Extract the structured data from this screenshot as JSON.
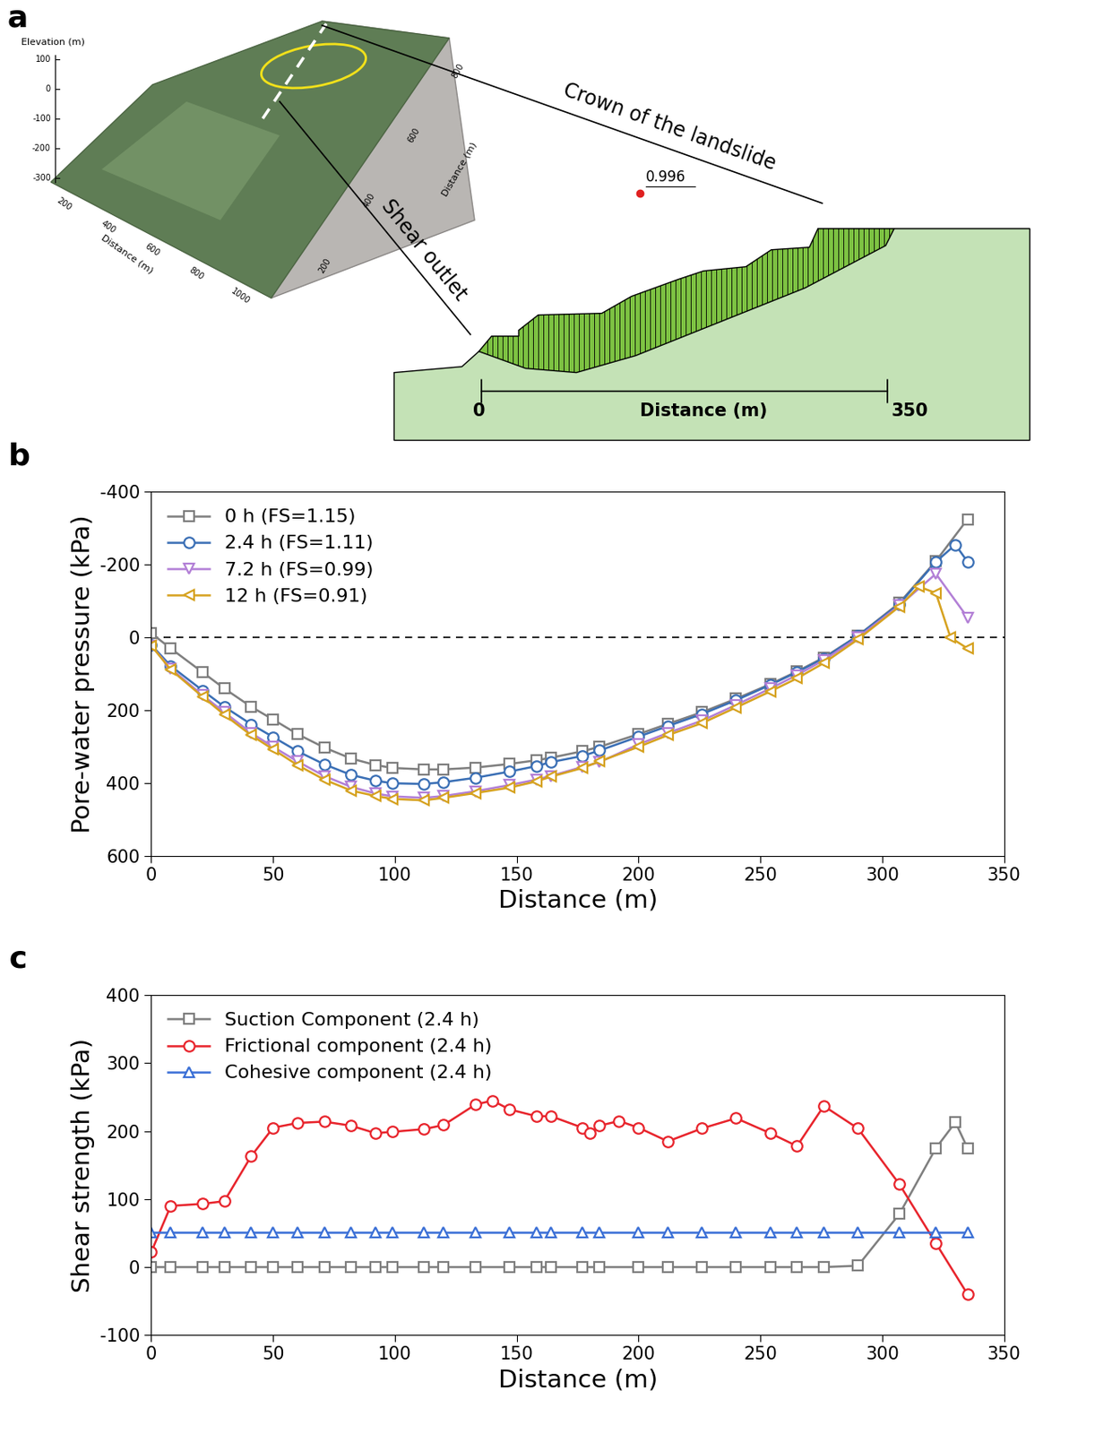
{
  "diagram": {
    "label": "a",
    "terrain": {
      "z_label": "Elevation (m)",
      "z_ticks": [
        100,
        0,
        -100,
        -200,
        -300
      ],
      "x_label": "Distance (m)",
      "x_ticks": [
        200,
        400,
        600,
        800,
        1000
      ],
      "y_label": "Distance (m)",
      "y_ticks": [
        200,
        400,
        600,
        800
      ]
    },
    "callouts": [
      "Crown of the landslide",
      "Shear outlet"
    ],
    "section": {
      "fs_value": 0.996,
      "distance_label": "Distance (m)",
      "distance_range": [
        0,
        350
      ]
    }
  },
  "chart_data": [
    {
      "label": "b",
      "type": "line",
      "x_label": "Distance (m)",
      "y_label": "Pore-water pressure (kPa)",
      "xlim": [
        0,
        350
      ],
      "ylim": [
        600,
        -400
      ],
      "xticks": [
        0,
        50,
        100,
        150,
        200,
        250,
        300,
        350
      ],
      "yticks": [
        -400,
        -200,
        0,
        200,
        400,
        600
      ],
      "legend": "upper left",
      "hline": 0,
      "series": [
        {
          "name": "0 h (FS=1.15)",
          "color": "#7f7f7f",
          "marker": "square",
          "x": [
            0,
            8,
            21,
            30,
            41,
            50,
            60,
            71,
            82,
            92,
            99,
            112,
            120,
            133,
            147,
            158,
            164,
            177,
            184,
            200,
            212,
            226,
            240,
            254,
            265,
            276,
            290,
            307,
            322,
            335
          ],
          "values": [
            -12,
            30,
            95,
            140,
            190,
            225,
            265,
            302,
            332,
            350,
            358,
            362,
            362,
            357,
            347,
            337,
            330,
            312,
            300,
            265,
            237,
            205,
            168,
            128,
            93,
            55,
            -5,
            -95,
            -210,
            -325
          ]
        },
        {
          "name": "2.4 h (FS=1.11)",
          "color": "#3a6fb5",
          "marker": "circle",
          "x": [
            0,
            8,
            21,
            30,
            41,
            50,
            60,
            71,
            82,
            92,
            99,
            112,
            120,
            133,
            147,
            158,
            164,
            177,
            184,
            200,
            212,
            226,
            240,
            254,
            265,
            276,
            290,
            307,
            322,
            330,
            335
          ],
          "values": [
            20,
            78,
            145,
            190,
            238,
            273,
            312,
            348,
            377,
            393,
            400,
            402,
            397,
            385,
            368,
            353,
            342,
            325,
            310,
            272,
            243,
            210,
            172,
            130,
            95,
            57,
            -5,
            -92,
            -208,
            -255,
            -208
          ]
        },
        {
          "name": "7.2 h (FS=0.99)",
          "color": "#b27fd6",
          "marker": "triangle_down",
          "x": [
            0,
            8,
            21,
            30,
            41,
            50,
            60,
            71,
            82,
            92,
            99,
            112,
            120,
            133,
            147,
            158,
            164,
            177,
            184,
            200,
            212,
            226,
            240,
            254,
            265,
            276,
            290,
            307,
            322,
            335
          ],
          "values": [
            22,
            85,
            158,
            205,
            262,
            300,
            340,
            380,
            410,
            428,
            436,
            440,
            435,
            422,
            405,
            390,
            380,
            355,
            342,
            293,
            262,
            228,
            185,
            140,
            103,
            62,
            0,
            -88,
            -175,
            -55
          ]
        },
        {
          "name": "12 h (FS=0.91)",
          "color": "#d6a220",
          "marker": "triangle_left",
          "x": [
            0,
            8,
            21,
            30,
            41,
            50,
            60,
            71,
            82,
            92,
            99,
            112,
            120,
            133,
            147,
            158,
            164,
            177,
            184,
            200,
            212,
            226,
            240,
            254,
            265,
            276,
            290,
            307,
            315,
            322,
            328,
            335
          ],
          "values": [
            22,
            88,
            162,
            212,
            268,
            307,
            350,
            390,
            420,
            435,
            443,
            447,
            440,
            427,
            412,
            395,
            382,
            358,
            340,
            300,
            268,
            235,
            192,
            148,
            112,
            70,
            5,
            -85,
            -140,
            -122,
            0,
            30
          ]
        }
      ]
    },
    {
      "label": "c",
      "type": "line",
      "x_label": "Distance (m)",
      "y_label": "Shear strength (kPa)",
      "xlim": [
        0,
        350
      ],
      "ylim": [
        -100,
        400
      ],
      "xticks": [
        0,
        50,
        100,
        150,
        200,
        250,
        300,
        350
      ],
      "yticks": [
        -100,
        0,
        100,
        200,
        300,
        400
      ],
      "legend": "upper left",
      "series": [
        {
          "name": "Suction Component (2.4 h)",
          "color": "#7f7f7f",
          "marker": "square",
          "x": [
            0,
            8,
            21,
            30,
            41,
            50,
            60,
            71,
            82,
            92,
            99,
            112,
            120,
            133,
            147,
            158,
            164,
            177,
            184,
            200,
            212,
            226,
            240,
            254,
            265,
            276,
            290,
            307,
            322,
            330,
            335
          ],
          "values": [
            0,
            0,
            0,
            0,
            0,
            0,
            0,
            0,
            0,
            0,
            0,
            0,
            0,
            0,
            0,
            0,
            0,
            0,
            0,
            0,
            0,
            0,
            0,
            0,
            0,
            0,
            2,
            78,
            175,
            213,
            175
          ]
        },
        {
          "name": "Frictional component (2.4 h)",
          "color": "#e8242c",
          "marker": "circle",
          "x": [
            0,
            8,
            21,
            30,
            41,
            50,
            60,
            71,
            82,
            92,
            99,
            112,
            120,
            133,
            140,
            147,
            158,
            164,
            177,
            180,
            184,
            192,
            200,
            212,
            226,
            240,
            254,
            265,
            276,
            290,
            307,
            322,
            335
          ],
          "values": [
            22,
            90,
            93,
            97,
            163,
            205,
            212,
            214,
            208,
            197,
            199,
            203,
            209,
            239,
            245,
            232,
            222,
            222,
            205,
            197,
            208,
            215,
            205,
            185,
            204,
            219,
            197,
            178,
            237,
            204,
            122,
            35,
            -40
          ]
        },
        {
          "name": "Cohesive component (2.4 h)",
          "color": "#3a6fd6",
          "marker": "triangle_up",
          "x": [
            0,
            8,
            21,
            30,
            41,
            50,
            60,
            71,
            82,
            92,
            99,
            112,
            120,
            133,
            147,
            158,
            164,
            177,
            184,
            200,
            212,
            226,
            240,
            254,
            265,
            276,
            290,
            307,
            322,
            335
          ],
          "values": [
            51,
            51,
            51,
            51,
            51,
            51,
            51,
            51,
            51,
            51,
            51,
            51,
            51,
            51,
            51,
            51,
            51,
            51,
            51,
            51,
            51,
            51,
            51,
            51,
            51,
            51,
            51,
            51,
            51,
            51
          ]
        }
      ]
    }
  ]
}
